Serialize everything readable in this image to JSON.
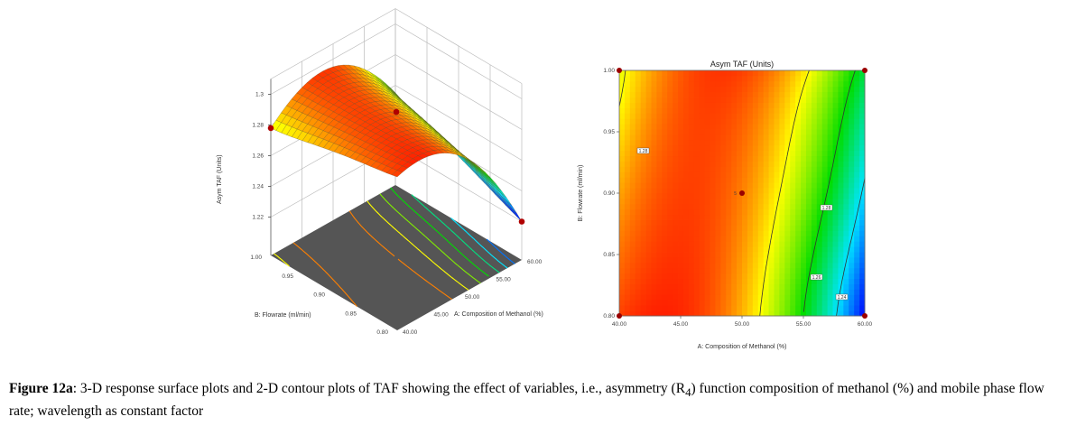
{
  "chart_data": [
    {
      "type": "surface3d",
      "zlabel": "Asym TAF (Units)",
      "xlabel": "A: Composition of Methanol (%)",
      "ylabel": "B: Flowrate (ml/min)",
      "x_ticks": [
        "40.00",
        "45.00",
        "50.00",
        "55.00",
        "60.00"
      ],
      "y_ticks": [
        "0.80",
        "0.85",
        "0.90",
        "0.95",
        "1.00"
      ],
      "z_ticks": [
        "1.22",
        "1.24",
        "1.26",
        "1.28",
        "1.3"
      ],
      "x": [
        40,
        45,
        50,
        55,
        60
      ],
      "y": [
        0.8,
        0.85,
        0.9,
        0.95,
        1.0
      ],
      "z_grid": [
        [
          1.295,
          1.297,
          1.286,
          1.26,
          1.22
        ],
        [
          1.291,
          1.296,
          1.288,
          1.265,
          1.229
        ],
        [
          1.287,
          1.295,
          1.29,
          1.271,
          1.238
        ],
        [
          1.282,
          1.294,
          1.292,
          1.276,
          1.246
        ],
        [
          1.278,
          1.293,
          1.295,
          1.282,
          1.255
        ]
      ],
      "design_points": [
        {
          "x": 40,
          "y": 1.0,
          "z": 1.278
        },
        {
          "x": 50,
          "y": 0.9,
          "z": 1.29
        },
        {
          "x": 60,
          "y": 0.8,
          "z": 1.22
        }
      ],
      "colormap": [
        "#0000ff",
        "#00e5ff",
        "#00dd00",
        "#ffff00",
        "#ff0000"
      ],
      "z_range": [
        1.22,
        1.3
      ],
      "floor_color": "#555555"
    },
    {
      "type": "contour",
      "title": "Asym TAF (Units)",
      "xlabel": "A: Composition of Methanol (%)",
      "ylabel": "B: Flowrate (ml/min)",
      "x_ticks": [
        "40.00",
        "45.00",
        "50.00",
        "55.00",
        "60.00"
      ],
      "y_ticks": [
        "0.80",
        "0.85",
        "0.90",
        "0.95",
        "1.00"
      ],
      "xlim": [
        40,
        60
      ],
      "ylim": [
        0.8,
        1.0
      ],
      "contour_levels": [
        1.28,
        1.26,
        1.24
      ],
      "contour_labels": [
        "1.28",
        "1.28",
        "1.26",
        "1.24"
      ],
      "design_points": [
        {
          "x": 40,
          "y": 0.8
        },
        {
          "x": 40,
          "y": 1.0
        },
        {
          "x": 60,
          "y": 1.0
        },
        {
          "x": 60,
          "y": 0.8
        },
        {
          "x": 50,
          "y": 0.9
        }
      ],
      "center_point_label": "5"
    }
  ],
  "caption": {
    "label": "Figure 12a",
    "text_1": ": 3-D response surface plots and 2-D contour plots of TAF showing the effect of variables, i.e., asymmetry (R",
    "subscript": "4",
    "text_2": ") function composition of methanol (%) and mobile phase flow rate; wavelength as constant factor"
  }
}
